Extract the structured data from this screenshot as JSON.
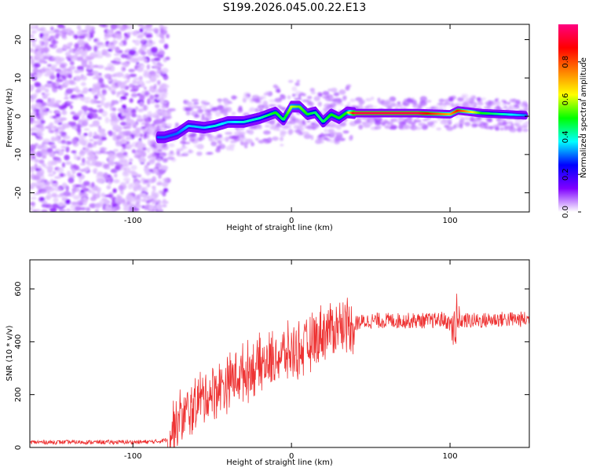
{
  "title": "S199.2026.045.00.22.E13",
  "chart_data": [
    {
      "type": "heatmap",
      "xlabel": "Height of straight line (km)",
      "ylabel": "Frequency (Hz)",
      "xlim": [
        -165,
        150
      ],
      "ylim": [
        -25,
        24
      ],
      "xticks": [
        -100,
        0,
        100
      ],
      "yticks": [
        -20,
        -10,
        0,
        10,
        20
      ],
      "colorbar": {
        "label": "Normalized spectral amplitude",
        "range": [
          0.0,
          1.0
        ],
        "ticks": [
          0.0,
          0.2,
          0.4,
          0.6,
          0.8
        ],
        "tick_labels": [
          "0.0",
          "0.2",
          "0.4",
          "0.6",
          "0.8"
        ],
        "colors": [
          "#ffffff",
          "#8000ff",
          "#0000ff",
          "#00ffff",
          "#00ff00",
          "#ffff00",
          "#ff8000",
          "#ff0000",
          "#ff0080"
        ]
      },
      "ridge": {
        "x": [
          -80,
          -72,
          -65,
          -55,
          -48,
          -40,
          -30,
          -20,
          -10,
          -5,
          0,
          5,
          10,
          15,
          20,
          25,
          30,
          35,
          40,
          60,
          80,
          100,
          105,
          120,
          150
        ],
        "frequency": [
          -5.5,
          -4.5,
          -2.5,
          -3,
          -2.5,
          -1.5,
          -1.5,
          -0.5,
          1,
          -1,
          2.5,
          2.5,
          0.5,
          1,
          -1.5,
          0.5,
          -0.5,
          1,
          0.8,
          0.8,
          0.8,
          0.5,
          1.5,
          0.8,
          0.2
        ],
        "amplitude": [
          0.3,
          0.3,
          0.35,
          0.35,
          0.4,
          0.35,
          0.4,
          0.4,
          0.5,
          0.45,
          0.6,
          0.55,
          0.5,
          0.45,
          0.45,
          0.5,
          0.5,
          0.5,
          0.95,
          0.95,
          0.95,
          0.7,
          0.85,
          0.5,
          0.3
        ]
      }
    },
    {
      "type": "line",
      "xlabel": "Height of straight line (km)",
      "ylabel": "SNR (10 * v/v)",
      "xlim": [
        -165,
        150
      ],
      "ylim": [
        0,
        710
      ],
      "xticks": [
        -100,
        0,
        100
      ],
      "yticks": [
        0,
        200,
        400,
        600
      ],
      "color": "#ee3333",
      "series": [
        {
          "name": "SNR",
          "x": [
            -165,
            -140,
            -120,
            -100,
            -85,
            -78,
            -74,
            -70,
            -65,
            -60,
            -55,
            -50,
            -45,
            -40,
            -35,
            -30,
            -25,
            -20,
            -15,
            -10,
            -5,
            0,
            5,
            10,
            15,
            20,
            25,
            30,
            35,
            40,
            45,
            50,
            60,
            70,
            80,
            90,
            95,
            100,
            103,
            105,
            107,
            110,
            120,
            130,
            140,
            150
          ],
          "y": [
            20,
            20,
            20,
            20,
            22,
            30,
            80,
            110,
            130,
            170,
            190,
            210,
            230,
            250,
            270,
            280,
            300,
            310,
            320,
            340,
            350,
            360,
            370,
            380,
            410,
            440,
            450,
            460,
            470,
            470,
            475,
            480,
            480,
            480,
            480,
            480,
            485,
            470,
            450,
            470,
            480,
            480,
            480,
            485,
            485,
            485
          ]
        }
      ]
    }
  ]
}
